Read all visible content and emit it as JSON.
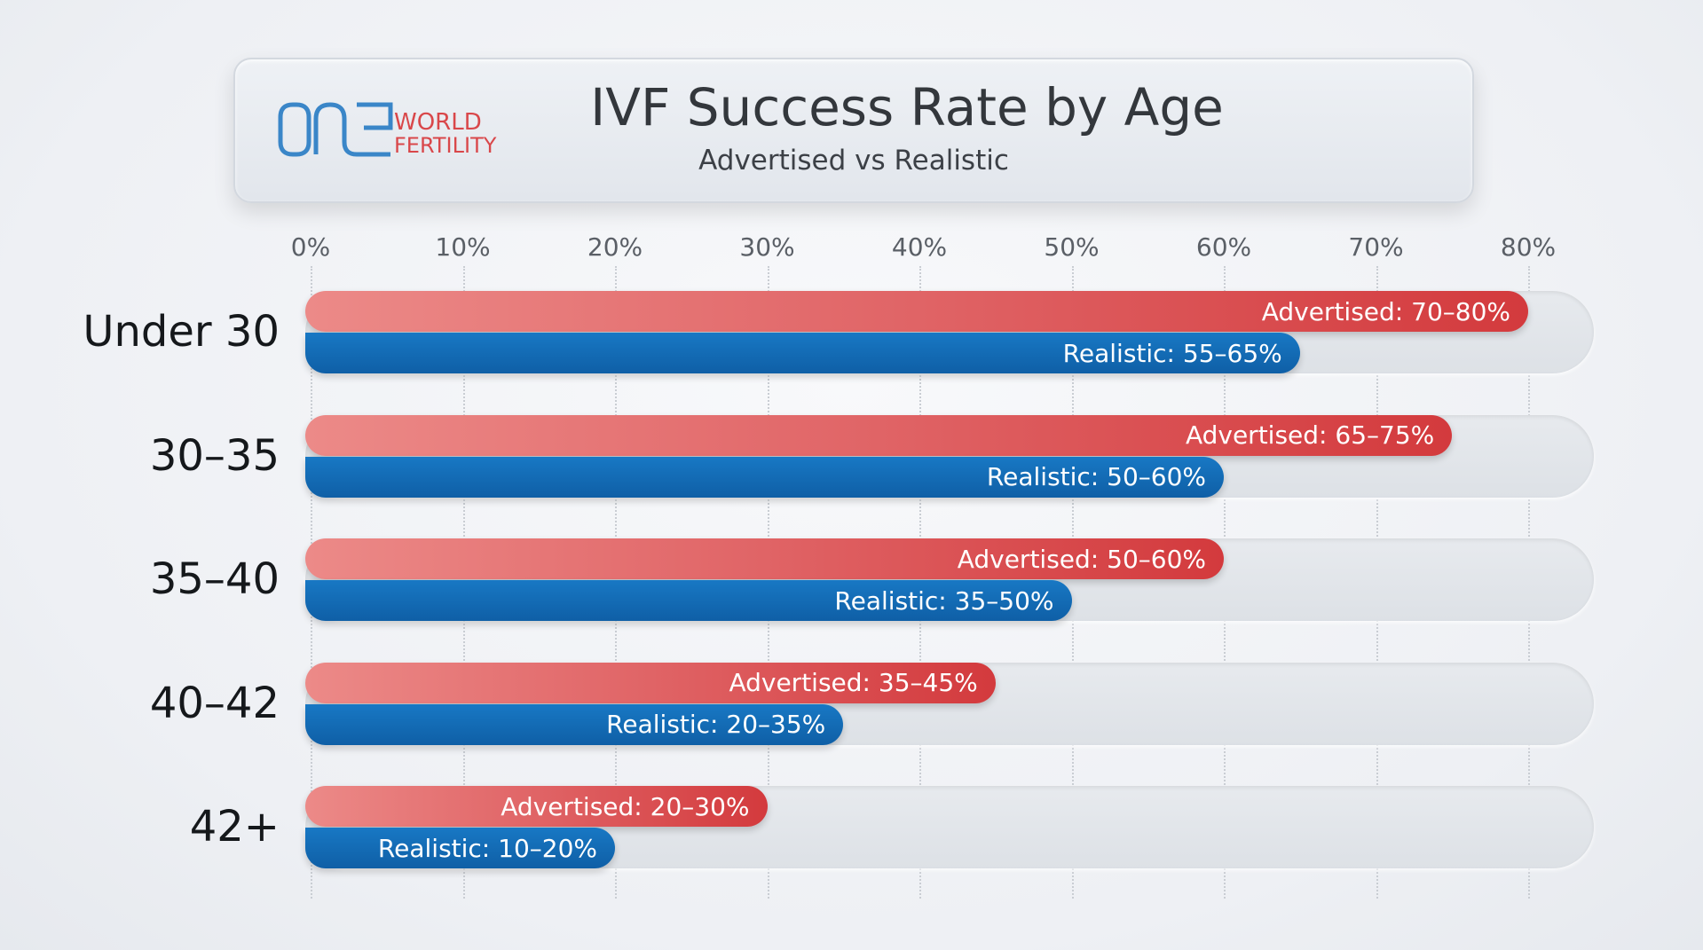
{
  "header": {
    "title": "IVF Success Rate by Age",
    "subtitle": "Advertised vs Realistic",
    "logo": {
      "text_one": "ONE",
      "text_world": "WORLD",
      "text_fertility": "FERTILITY"
    }
  },
  "colors": {
    "advertised": "#d9474a",
    "realistic": "#1367b0",
    "track": "#e2e6eb"
  },
  "chart_data": {
    "type": "bar",
    "orientation": "horizontal",
    "title": "IVF Success Rate by Age",
    "subtitle": "Advertised vs Realistic",
    "xlim": [
      0,
      84
    ],
    "x_ticks": [
      "0%",
      "10%",
      "20%",
      "30%",
      "40%",
      "50%",
      "60%",
      "70%",
      "80%"
    ],
    "grid": true,
    "categories": [
      "Under 30",
      "30–35",
      "35–40",
      "40–42",
      "42+"
    ],
    "series": [
      {
        "name": "Advertised",
        "ranges": [
          [
            70,
            80
          ],
          [
            65,
            75
          ],
          [
            50,
            60
          ],
          [
            35,
            45
          ],
          [
            20,
            30
          ]
        ],
        "labels": [
          "Advertised: 70–80%",
          "Advertised: 65–75%",
          "Advertised: 50–60%",
          "Advertised: 35–45%",
          "Advertised: 20–30%"
        ]
      },
      {
        "name": "Realistic",
        "ranges": [
          [
            55,
            65
          ],
          [
            50,
            60
          ],
          [
            35,
            50
          ],
          [
            20,
            35
          ],
          [
            10,
            20
          ]
        ],
        "labels": [
          "Realistic: 55–65%",
          "Realistic: 50–60%",
          "Realistic: 35–50%",
          "Realistic: 20–35%",
          "Realistic: 10–20%"
        ]
      }
    ]
  }
}
